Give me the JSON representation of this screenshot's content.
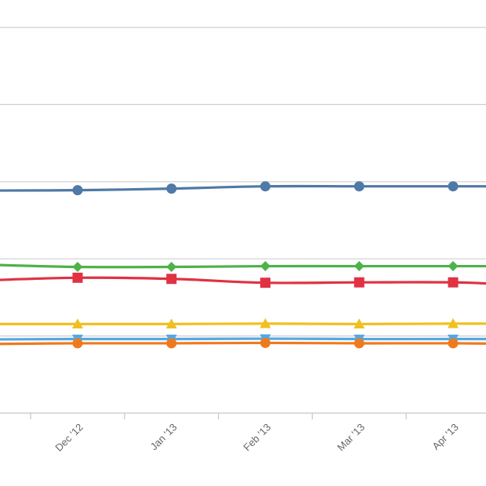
{
  "chart_data": {
    "type": "line",
    "categories": [
      "Dec '12",
      "Jan '13",
      "Feb '13",
      "Mar '13",
      "Apr '13"
    ],
    "x_tick_labels": [
      "Dec '12",
      "Jan '13",
      "Feb '13",
      "Mar '13",
      "Apr '13"
    ],
    "xlabel": "",
    "ylabel": "",
    "title": "",
    "grid": true,
    "legend": "none",
    "ylim": [
      0,
      50
    ],
    "gridlines_y": [
      10,
      20,
      30,
      40,
      50
    ],
    "series": [
      {
        "color": "#4f79a6",
        "marker": "circle",
        "lead": 28.85,
        "values": [
          28.9,
          29.1,
          29.4,
          29.4,
          29.4
        ],
        "tail": 29.4
      },
      {
        "color": "#4fb14a",
        "marker": "diamond",
        "lead": 19.25,
        "values": [
          18.95,
          18.95,
          19.05,
          19.05,
          19.05
        ],
        "tail": 19.05
      },
      {
        "color": "#e03242",
        "marker": "square",
        "lead": 17.2,
        "values": [
          17.55,
          17.4,
          16.9,
          16.95,
          16.95
        ],
        "tail": 16.7
      },
      {
        "color": "#f0c020",
        "marker": "triangle",
        "lead": 11.55,
        "values": [
          11.55,
          11.55,
          11.6,
          11.55,
          11.6
        ],
        "tail": 11.6
      },
      {
        "color": "#55a8e0",
        "marker": "triangle-down",
        "lead": 9.55,
        "values": [
          9.6,
          9.6,
          9.65,
          9.6,
          9.6
        ],
        "tail": 9.6
      },
      {
        "color": "#ef7a1e",
        "marker": "circle",
        "lead": 8.95,
        "values": [
          9.05,
          9.05,
          9.1,
          9.05,
          9.05
        ],
        "tail": 9.0
      }
    ]
  }
}
